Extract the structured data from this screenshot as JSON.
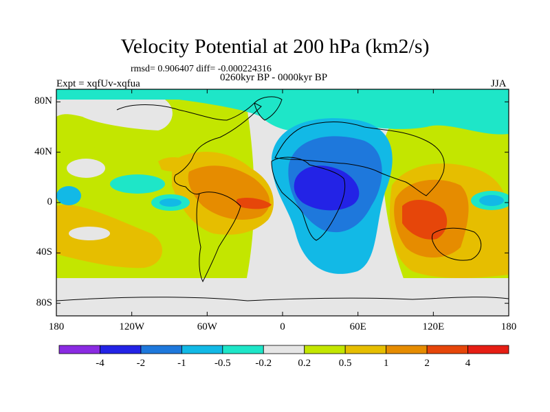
{
  "title": "Velocity Potential at 200 hPa (km2/s)",
  "stats": "rmsd= 0.906407 diff= -0.000224316",
  "experiment": "Expt = xqfUv-xqfua",
  "period": "0260kyr BP - 0000kyr BP",
  "season": "JJA",
  "y_axis": {
    "ticks": [
      {
        "label": "80N",
        "lat": 80
      },
      {
        "label": "40N",
        "lat": 40
      },
      {
        "label": "0",
        "lat": 0
      },
      {
        "label": "40S",
        "lat": -40
      },
      {
        "label": "80S",
        "lat": -80
      }
    ]
  },
  "x_axis": {
    "ticks": [
      {
        "label": "180",
        "lon": -180
      },
      {
        "label": "120W",
        "lon": -120
      },
      {
        "label": "60W",
        "lon": -60
      },
      {
        "label": "0",
        "lon": 0
      },
      {
        "label": "60E",
        "lon": 60
      },
      {
        "label": "120E",
        "lon": 120
      },
      {
        "label": "180",
        "lon": 180
      }
    ]
  },
  "colorbar": {
    "colors": [
      "#8a2be2",
      "#2323e6",
      "#1e78dc",
      "#12b9e6",
      "#1ee6c8",
      "#e6e6e6",
      "#c3e600",
      "#e6be00",
      "#e68c00",
      "#e6460a",
      "#e61e14"
    ],
    "labels": [
      "-4",
      "-2",
      "-1",
      "-0.5",
      "-0.2",
      "0.2",
      "0.5",
      "1",
      "2",
      "4"
    ]
  },
  "anomaly_regions": [
    {
      "name": "africa-low",
      "level": 1,
      "lon": 35,
      "lat": 10,
      "rlon": 50,
      "rlat": 55
    },
    {
      "name": "africa-low-core",
      "level": 0,
      "lon": 30,
      "lat": 15,
      "rlon": 25,
      "rlat": 20
    },
    {
      "name": "arctic-low",
      "level": 4,
      "lon": 60,
      "lat": 80,
      "rlon": 120,
      "rlat": 20
    },
    {
      "name": "atlantic-high",
      "level": 8,
      "lon": -40,
      "lat": 10,
      "rlon": 35,
      "rlat": 25
    },
    {
      "name": "atlantic-high-core",
      "level": 9,
      "lon": -20,
      "lat": 0,
      "rlon": 12,
      "rlat": 6
    },
    {
      "name": "indo-pacific-high",
      "level": 8,
      "lon": 120,
      "lat": -10,
      "rlon": 30,
      "rlat": 40
    },
    {
      "name": "indo-pacific-core",
      "level": 9,
      "lon": 110,
      "lat": -15,
      "rlon": 15,
      "rlat": 15
    },
    {
      "name": "pacific-west-low",
      "level": 3,
      "lon": -130,
      "lat": 5,
      "rlon": 20,
      "rlat": 10
    },
    {
      "name": "east-pacific-low",
      "level": 3,
      "lon": 160,
      "lat": 0,
      "rlon": 18,
      "rlat": 10
    }
  ]
}
